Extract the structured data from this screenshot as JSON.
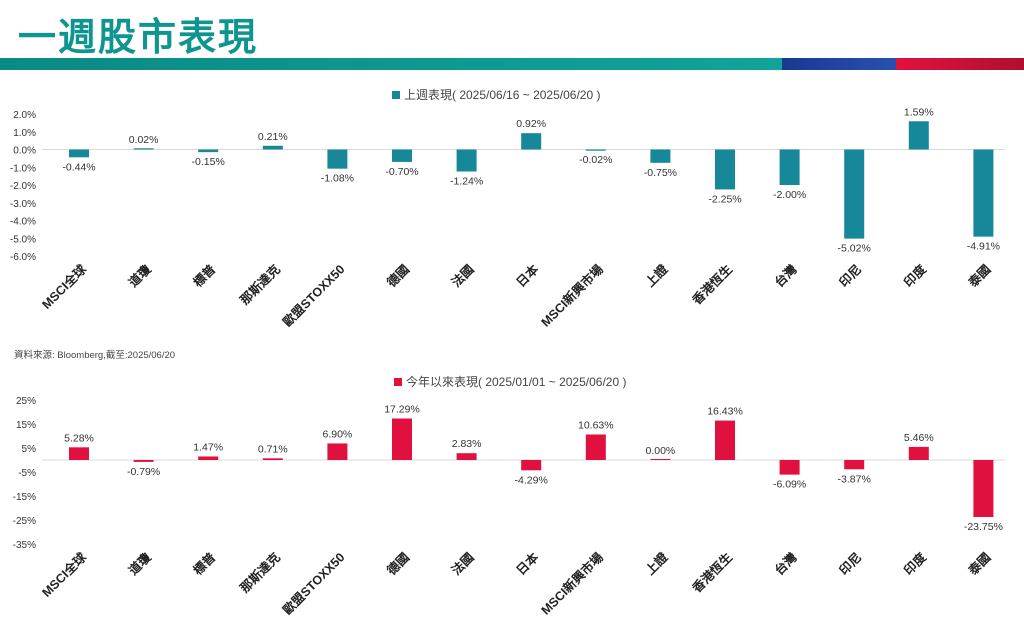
{
  "page": {
    "title": "一週股市表現",
    "source": "資料來源: Bloomberg,截至:2025/06/20"
  },
  "colors": {
    "title": "#0f9590",
    "band_teal": "#0f9a94",
    "band_blue": "#1e3f98",
    "band_red": "#cc1238",
    "weekly_bar": "#17879a",
    "ytd_bar": "#e0103f"
  },
  "chart_data": [
    {
      "type": "bar",
      "legend": "上週表現( 2025/06/16 ~ 2025/06/20 )",
      "categories": [
        "MSCI全球",
        "道瓊",
        "標普",
        "那斯達克",
        "歐盟STOXX50",
        "德國",
        "法國",
        "日本",
        "MSCI新興市場",
        "上證",
        "香港恆生",
        "台灣",
        "印尼",
        "印度",
        "泰國"
      ],
      "values": [
        -0.44,
        0.02,
        -0.15,
        0.21,
        -1.08,
        -0.7,
        -1.24,
        0.92,
        -0.02,
        -0.75,
        -2.25,
        -2.0,
        -5.02,
        1.59,
        -4.91
      ],
      "labels": [
        "-0.44%",
        "0.02%",
        "-0.15%",
        "0.21%",
        "-1.08%",
        "-0.70%",
        "-1.24%",
        "0.92%",
        "-0.02%",
        "-0.75%",
        "-2.25%",
        "-2.00%",
        "-5.02%",
        "1.59%",
        "-4.91%"
      ],
      "yticks": [
        2.0,
        1.0,
        0.0,
        -1.0,
        -2.0,
        -3.0,
        -4.0,
        -5.0,
        -6.0
      ],
      "ytick_labels": [
        "2.0%",
        "1.0%",
        "0.0%",
        "-1.0%",
        "-2.0%",
        "-3.0%",
        "-4.0%",
        "-5.0%",
        "-6.0%"
      ],
      "ylim": [
        -6,
        2
      ],
      "grid": false,
      "legend_position": "top-center"
    },
    {
      "type": "bar",
      "legend": "今年以來表現( 2025/01/01 ~ 2025/06/20 )",
      "categories": [
        "MSCI全球",
        "道瓊",
        "標普",
        "那斯達克",
        "歐盟STOXX50",
        "德國",
        "法國",
        "日本",
        "MSCI新興市場",
        "上證",
        "香港恆生",
        "台灣",
        "印尼",
        "印度",
        "泰國"
      ],
      "values": [
        5.28,
        -0.79,
        1.47,
        0.71,
        6.9,
        17.29,
        2.83,
        -4.29,
        10.63,
        0.0,
        16.43,
        -6.09,
        -3.87,
        5.46,
        -23.75
      ],
      "labels": [
        "5.28%",
        "-0.79%",
        "1.47%",
        "0.71%",
        "6.90%",
        "17.29%",
        "2.83%",
        "-4.29%",
        "10.63%",
        "0.00%",
        "16.43%",
        "-6.09%",
        "-3.87%",
        "5.46%",
        "-23.75%"
      ],
      "yticks": [
        25,
        15,
        5,
        -5,
        -15,
        -25,
        -35
      ],
      "ytick_labels": [
        "25%",
        "15%",
        "5%",
        "-5%",
        "-15%",
        "-25%",
        "-35%"
      ],
      "ylim": [
        -35,
        25
      ],
      "grid": false,
      "legend_position": "top-center"
    }
  ]
}
